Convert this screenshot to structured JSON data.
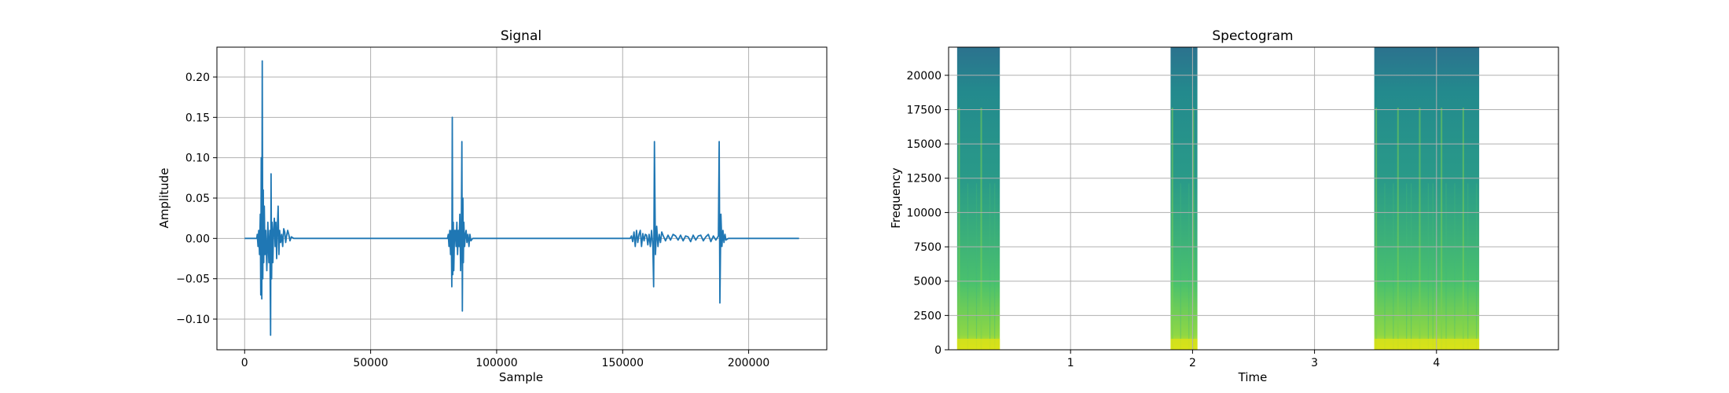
{
  "chart_data": [
    {
      "type": "line",
      "title": "Signal",
      "xlabel": "Sample",
      "ylabel": "Amplitude",
      "xlim": [
        -11000,
        231000
      ],
      "ylim": [
        -0.138,
        0.237
      ],
      "grid": true,
      "xticks": [
        0,
        50000,
        100000,
        150000,
        200000
      ],
      "xtick_labels": [
        "0",
        "50000",
        "100000",
        "150000",
        "200000"
      ],
      "yticks": [
        -0.1,
        -0.05,
        0.0,
        0.05,
        0.1,
        0.15,
        0.2
      ],
      "ytick_labels": [
        "−0.10",
        "−0.05",
        "0.00",
        "0.05",
        "0.10",
        "0.15",
        "0.20"
      ],
      "series": [
        {
          "color": "#1f77b4",
          "x": [
            0,
            4800,
            5000,
            5300,
            5600,
            5900,
            6200,
            6400,
            6600,
            6800,
            7000,
            7200,
            7400,
            7600,
            7800,
            8100,
            8400,
            8800,
            9200,
            9600,
            10000,
            10300,
            10500,
            10700,
            10900,
            11200,
            11500,
            11800,
            12100,
            12400,
            12700,
            13000,
            13300,
            13600,
            13900,
            14300,
            14700,
            15100,
            15500,
            15900,
            16300,
            16700,
            17100,
            17500,
            18000,
            18500,
            19500,
            80500,
            80800,
            81100,
            81400,
            81700,
            82000,
            82200,
            82400,
            82600,
            82800,
            83000,
            83300,
            83600,
            83900,
            84200,
            84500,
            84800,
            85100,
            85400,
            85700,
            86000,
            86200,
            86400,
            86600,
            86800,
            87000,
            87300,
            87600,
            87900,
            88200,
            88600,
            89000,
            89400,
            89800,
            90500,
            153000,
            153500,
            154000,
            154500,
            155000,
            155500,
            156000,
            156500,
            157000,
            157500,
            158000,
            158500,
            159000,
            159500,
            160000,
            160500,
            161000,
            161500,
            162000,
            162300,
            162600,
            163000,
            163500,
            164000,
            164500,
            165000,
            165500,
            166000,
            167000,
            168000,
            169000,
            170000,
            171000,
            172000,
            173000,
            174000,
            175000,
            176000,
            177000,
            178000,
            179000,
            180000,
            181000,
            182000,
            183000,
            184000,
            185000,
            186000,
            187000,
            188000,
            188300,
            188600,
            189000,
            189400,
            189800,
            190200,
            190600,
            191000,
            192000,
            220000
          ],
          "y": [
            0,
            0,
            0.005,
            -0.01,
            0.01,
            -0.02,
            0.03,
            -0.07,
            0.1,
            -0.075,
            0.22,
            -0.05,
            0.06,
            -0.03,
            0.04,
            -0.02,
            0.01,
            -0.04,
            0.02,
            -0.03,
            0.01,
            -0.12,
            0.08,
            -0.05,
            0.02,
            -0.03,
            0.01,
            0.025,
            -0.01,
            0.02,
            -0.025,
            0.015,
            0.04,
            -0.02,
            0.01,
            -0.005,
            0.005,
            -0.01,
            0.012,
            0.008,
            -0.005,
            0.004,
            0.01,
            0.005,
            -0.003,
            0.002,
            0,
            0,
            0.005,
            -0.01,
            0.01,
            -0.02,
            0.01,
            -0.06,
            0.15,
            -0.045,
            0.02,
            -0.04,
            0.01,
            0.01,
            -0.01,
            0.02,
            -0.02,
            0.01,
            -0.01,
            0.03,
            -0.04,
            0.015,
            0.12,
            -0.09,
            0.05,
            -0.03,
            0.02,
            -0.01,
            0.005,
            0.01,
            -0.005,
            0.005,
            -0.01,
            0.005,
            -0.003,
            0,
            0,
            0.003,
            -0.004,
            0.008,
            -0.01,
            0.01,
            -0.005,
            0.005,
            0.01,
            -0.01,
            0.006,
            -0.003,
            0.005,
            0.004,
            -0.008,
            0.005,
            -0.01,
            0.01,
            -0.01,
            -0.06,
            0.12,
            -0.02,
            0.015,
            -0.01,
            0.005,
            -0.005,
            0.008,
            0.004,
            -0.003,
            0.004,
            -0.002,
            0.005,
            0.003,
            -0.002,
            0.004,
            -0.003,
            0.003,
            0.002,
            -0.004,
            0.004,
            -0.002,
            0.003,
            0.004,
            -0.003,
            0.002,
            0.005,
            -0.004,
            0.003,
            -0.002,
            0.003,
            0.12,
            -0.08,
            0.03,
            -0.01,
            0.01,
            -0.005,
            0.005,
            -0.002,
            0,
            0
          ]
        }
      ]
    },
    {
      "type": "heatmap",
      "title": "Spectogram",
      "xlabel": "Time",
      "ylabel": "Frequency",
      "xlim": [
        0,
        5
      ],
      "ylim": [
        0,
        22050
      ],
      "grid": true,
      "xticks": [
        1,
        2,
        3,
        4
      ],
      "xtick_labels": [
        "1",
        "2",
        "3",
        "4"
      ],
      "yticks": [
        0,
        2500,
        5000,
        7500,
        10000,
        12500,
        15000,
        17500,
        20000
      ],
      "ytick_labels": [
        "0",
        "2500",
        "5000",
        "7500",
        "10000",
        "12500",
        "15000",
        "17500",
        "20000"
      ],
      "colormap": "viridis",
      "active_segments": [
        {
          "start": 0.07,
          "end": 0.42
        },
        {
          "start": 1.82,
          "end": 2.04
        },
        {
          "start": 3.49,
          "end": 4.35
        }
      ]
    }
  ]
}
